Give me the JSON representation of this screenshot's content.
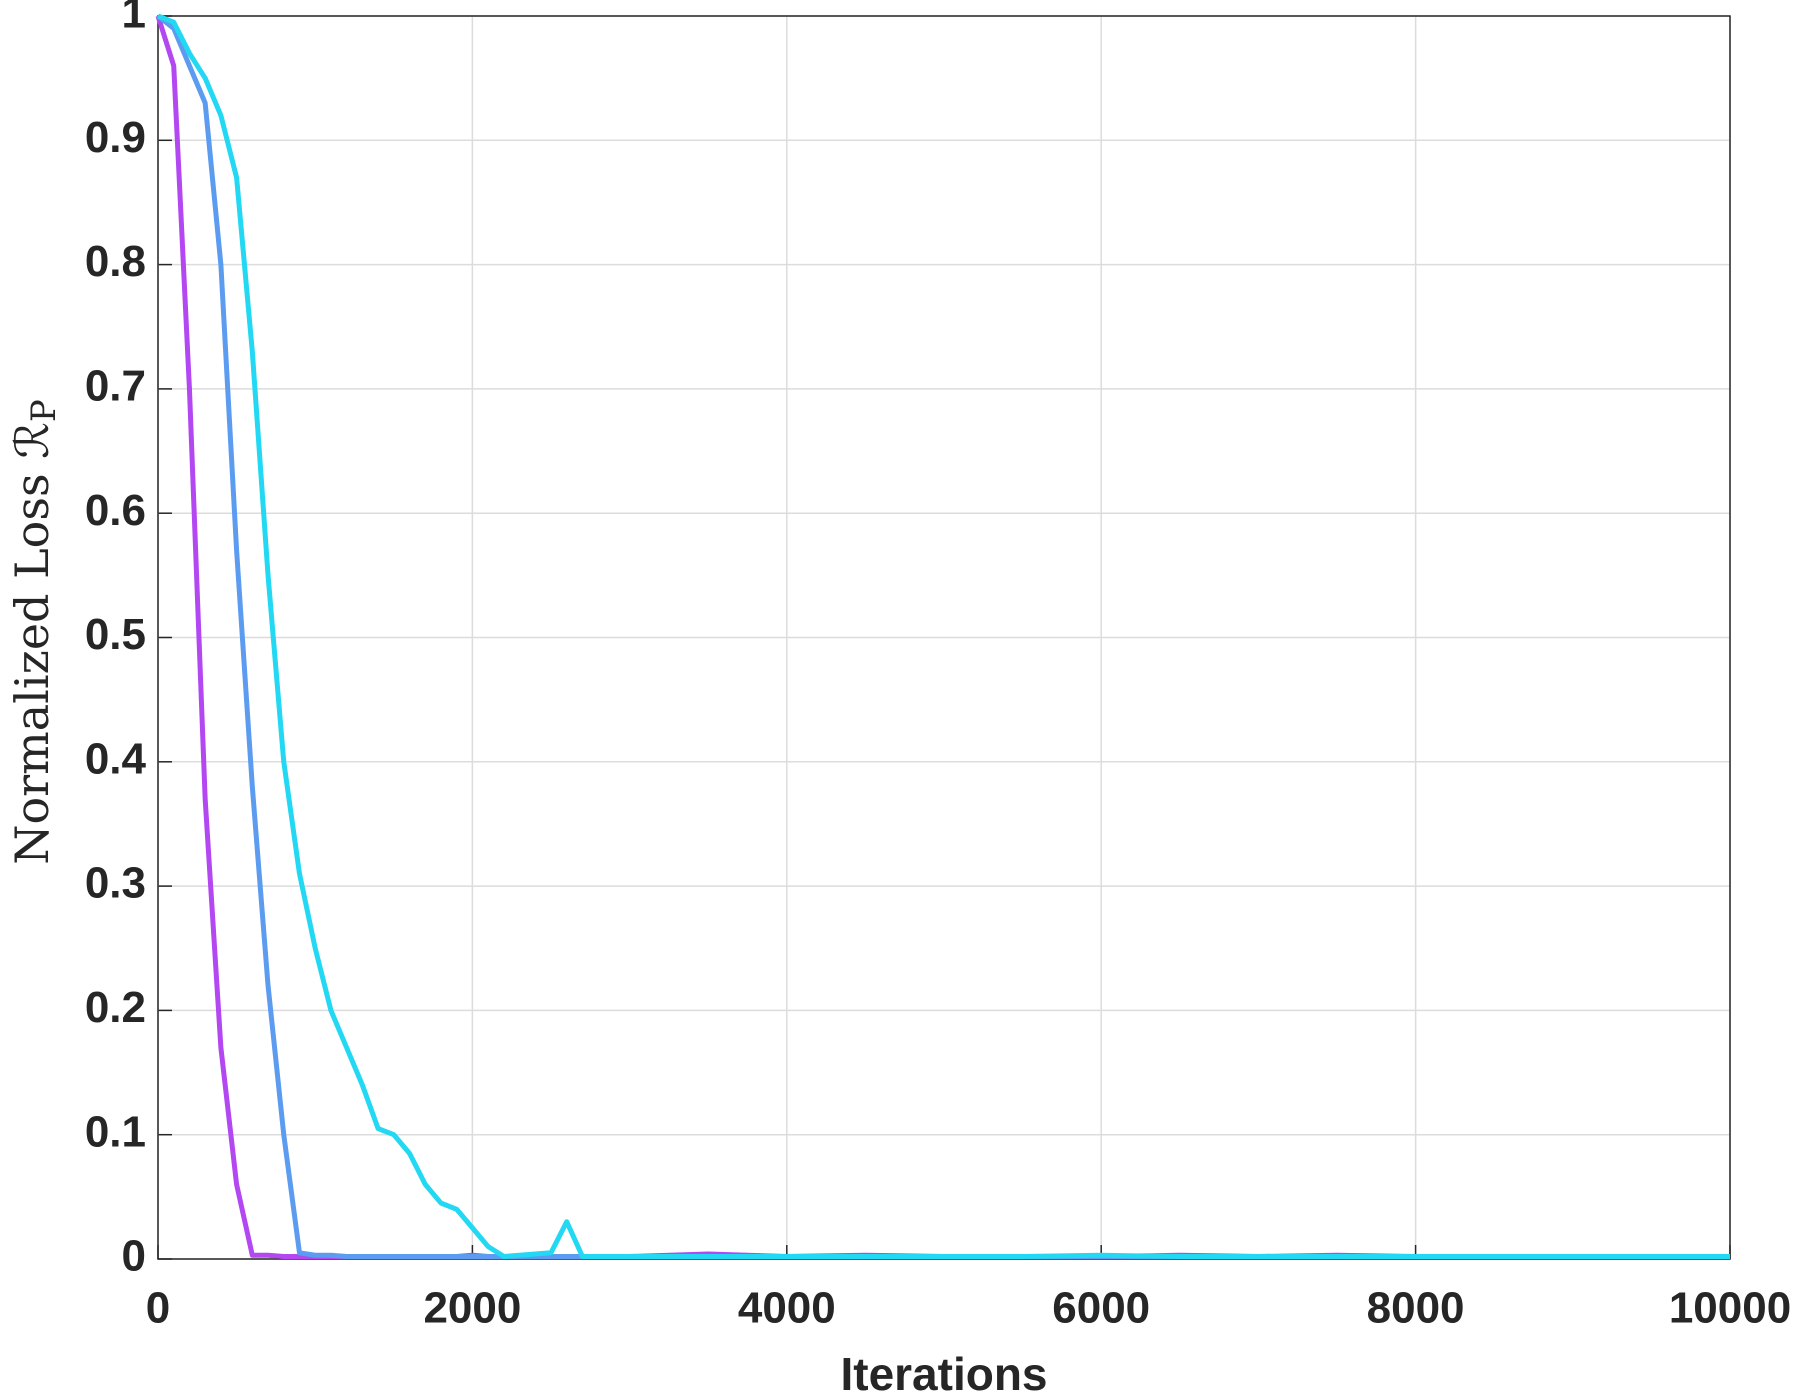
{
  "chart_data": {
    "type": "line",
    "xlabel": "Iterations",
    "ylabel": "Normalized Loss ℛ",
    "ylabel_subscript": "P",
    "x": [
      0,
      100,
      200,
      300,
      400,
      500,
      600,
      700,
      800,
      900,
      1000,
      1100,
      1200,
      1300,
      1400,
      1500,
      1600,
      1700,
      1800,
      1900,
      2000,
      2100,
      2200,
      2300,
      2400,
      2500,
      2600,
      2700,
      2800,
      2900,
      3000,
      3500,
      4000,
      4500,
      5000,
      5500,
      6000,
      6500,
      7000,
      7500,
      8000,
      8500,
      9000,
      9500,
      10000
    ],
    "series": [
      {
        "color": "#b347f2",
        "values": [
          1,
          0.96,
          0.7,
          0.37,
          0.17,
          0.06,
          0.003,
          0.003,
          0.002,
          0.002,
          0.002,
          0.002,
          0.002,
          0.002,
          0.002,
          0.002,
          0.002,
          0.002,
          0.002,
          0.002,
          0.003,
          0.002,
          0.002,
          0.002,
          0.002,
          0.002,
          0.002,
          0.002,
          0.002,
          0.002,
          0.002,
          0.004,
          0.002,
          0.003,
          0.002,
          0.002,
          0.002,
          0.003,
          0.002,
          0.003,
          0.002,
          0.002,
          0.002,
          0.002,
          0.002
        ]
      },
      {
        "color": "#5c9cf0",
        "values": [
          1,
          0.99,
          0.96,
          0.93,
          0.8,
          0.57,
          0.38,
          0.22,
          0.1,
          0.005,
          0.003,
          0.003,
          0.002,
          0.002,
          0.002,
          0.002,
          0.002,
          0.002,
          0.002,
          0.002,
          0.002,
          0.002,
          0.002,
          0.002,
          0.002,
          0.002,
          0.002,
          0.002,
          0.002,
          0.002,
          0.002,
          0.002,
          0.002,
          0.002,
          0.002,
          0.002,
          0.002,
          0.002,
          0.002,
          0.002,
          0.002,
          0.002,
          0.002,
          0.002,
          0.002
        ]
      },
      {
        "color": "#22d8f2",
        "values": [
          1,
          0.995,
          0.97,
          0.95,
          0.92,
          0.87,
          0.73,
          0.55,
          0.4,
          0.31,
          0.25,
          0.2,
          0.17,
          0.14,
          0.105,
          0.1,
          0.085,
          0.06,
          0.045,
          0.04,
          0.025,
          0.01,
          0.002,
          0.003,
          0.004,
          0.005,
          0.03,
          0.002,
          0.002,
          0.002,
          0.002,
          0.002,
          0.002,
          0.002,
          0.002,
          0.002,
          0.003,
          0.002,
          0.002,
          0.002,
          0.002,
          0.002,
          0.002,
          0.002,
          0.002
        ]
      }
    ],
    "xlim": [
      0,
      10000
    ],
    "xticks": [
      0,
      2000,
      4000,
      6000,
      8000,
      10000
    ],
    "ylim": [
      0,
      1
    ],
    "yticks": [
      0,
      0.1,
      0.2,
      0.3,
      0.4,
      0.5,
      0.6,
      0.7,
      0.8,
      0.9,
      1
    ],
    "grid": true
  }
}
